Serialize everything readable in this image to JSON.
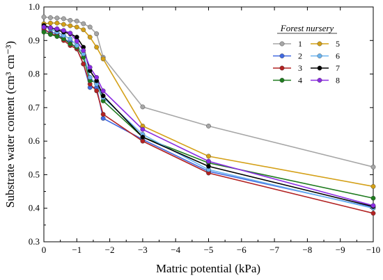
{
  "chart_data": {
    "type": "line",
    "title": "",
    "xlabel": "Matric potential (kPa)",
    "ylabel": "Substrate water content (cm³ cm⁻³)",
    "xlim": [
      0,
      -10
    ],
    "ylim": [
      0.3,
      1.0
    ],
    "x_ticks": [
      0,
      -1,
      -2,
      -3,
      -4,
      -5,
      -6,
      -7,
      -8,
      -9,
      -10
    ],
    "x_tick_labels": [
      "0",
      "−1",
      "−2",
      "−3",
      "−4",
      "−5",
      "−6",
      "−7",
      "−8",
      "−9",
      "−10"
    ],
    "y_ticks": [
      0.3,
      0.4,
      0.5,
      0.6,
      0.7,
      0.8,
      0.9,
      1.0
    ],
    "y_tick_labels": [
      "0.3",
      "0.4",
      "0.5",
      "0.6",
      "0.7",
      "0.8",
      "0.9",
      "1.0"
    ],
    "legend_title": "Forest nursery",
    "legend_position": "top-right",
    "grid": false,
    "x": [
      0,
      -0.2,
      -0.4,
      -0.6,
      -0.8,
      -1.0,
      -1.2,
      -1.4,
      -1.6,
      -1.8,
      -3,
      -5,
      -10
    ],
    "series": [
      {
        "name": "1",
        "color": "#a6a6a6",
        "values": [
          0.97,
          0.968,
          0.967,
          0.965,
          0.96,
          0.958,
          0.95,
          0.94,
          0.92,
          0.85,
          0.702,
          0.645,
          0.523
        ]
      },
      {
        "name": "2",
        "color": "#4169e1",
        "values": [
          0.93,
          0.925,
          0.92,
          0.905,
          0.895,
          0.875,
          0.83,
          0.76,
          0.76,
          0.668,
          0.605,
          0.51,
          0.402
        ]
      },
      {
        "name": "3",
        "color": "#b22222",
        "values": [
          0.935,
          0.92,
          0.915,
          0.9,
          0.885,
          0.875,
          0.83,
          0.77,
          0.75,
          0.68,
          0.6,
          0.505,
          0.385
        ]
      },
      {
        "name": "4",
        "color": "#1e7b1e",
        "values": [
          0.925,
          0.918,
          0.912,
          0.905,
          0.89,
          0.88,
          0.85,
          0.78,
          0.775,
          0.72,
          0.612,
          0.535,
          0.43
        ]
      },
      {
        "name": "5",
        "color": "#d4a017",
        "values": [
          0.95,
          0.952,
          0.952,
          0.948,
          0.944,
          0.94,
          0.932,
          0.91,
          0.88,
          0.845,
          0.645,
          0.555,
          0.465
        ]
      },
      {
        "name": "6",
        "color": "#6ab4f0",
        "values": [
          0.94,
          0.935,
          0.925,
          0.915,
          0.905,
          0.885,
          0.86,
          0.79,
          0.77,
          0.73,
          0.62,
          0.515,
          0.4
        ]
      },
      {
        "name": "7",
        "color": "#000000",
        "values": [
          0.945,
          0.938,
          0.932,
          0.925,
          0.92,
          0.91,
          0.88,
          0.81,
          0.78,
          0.735,
          0.612,
          0.525,
          0.405
        ]
      },
      {
        "name": "8",
        "color": "#8a2be2",
        "values": [
          0.94,
          0.938,
          0.935,
          0.93,
          0.922,
          0.898,
          0.87,
          0.82,
          0.79,
          0.75,
          0.635,
          0.54,
          0.408
        ]
      }
    ]
  }
}
